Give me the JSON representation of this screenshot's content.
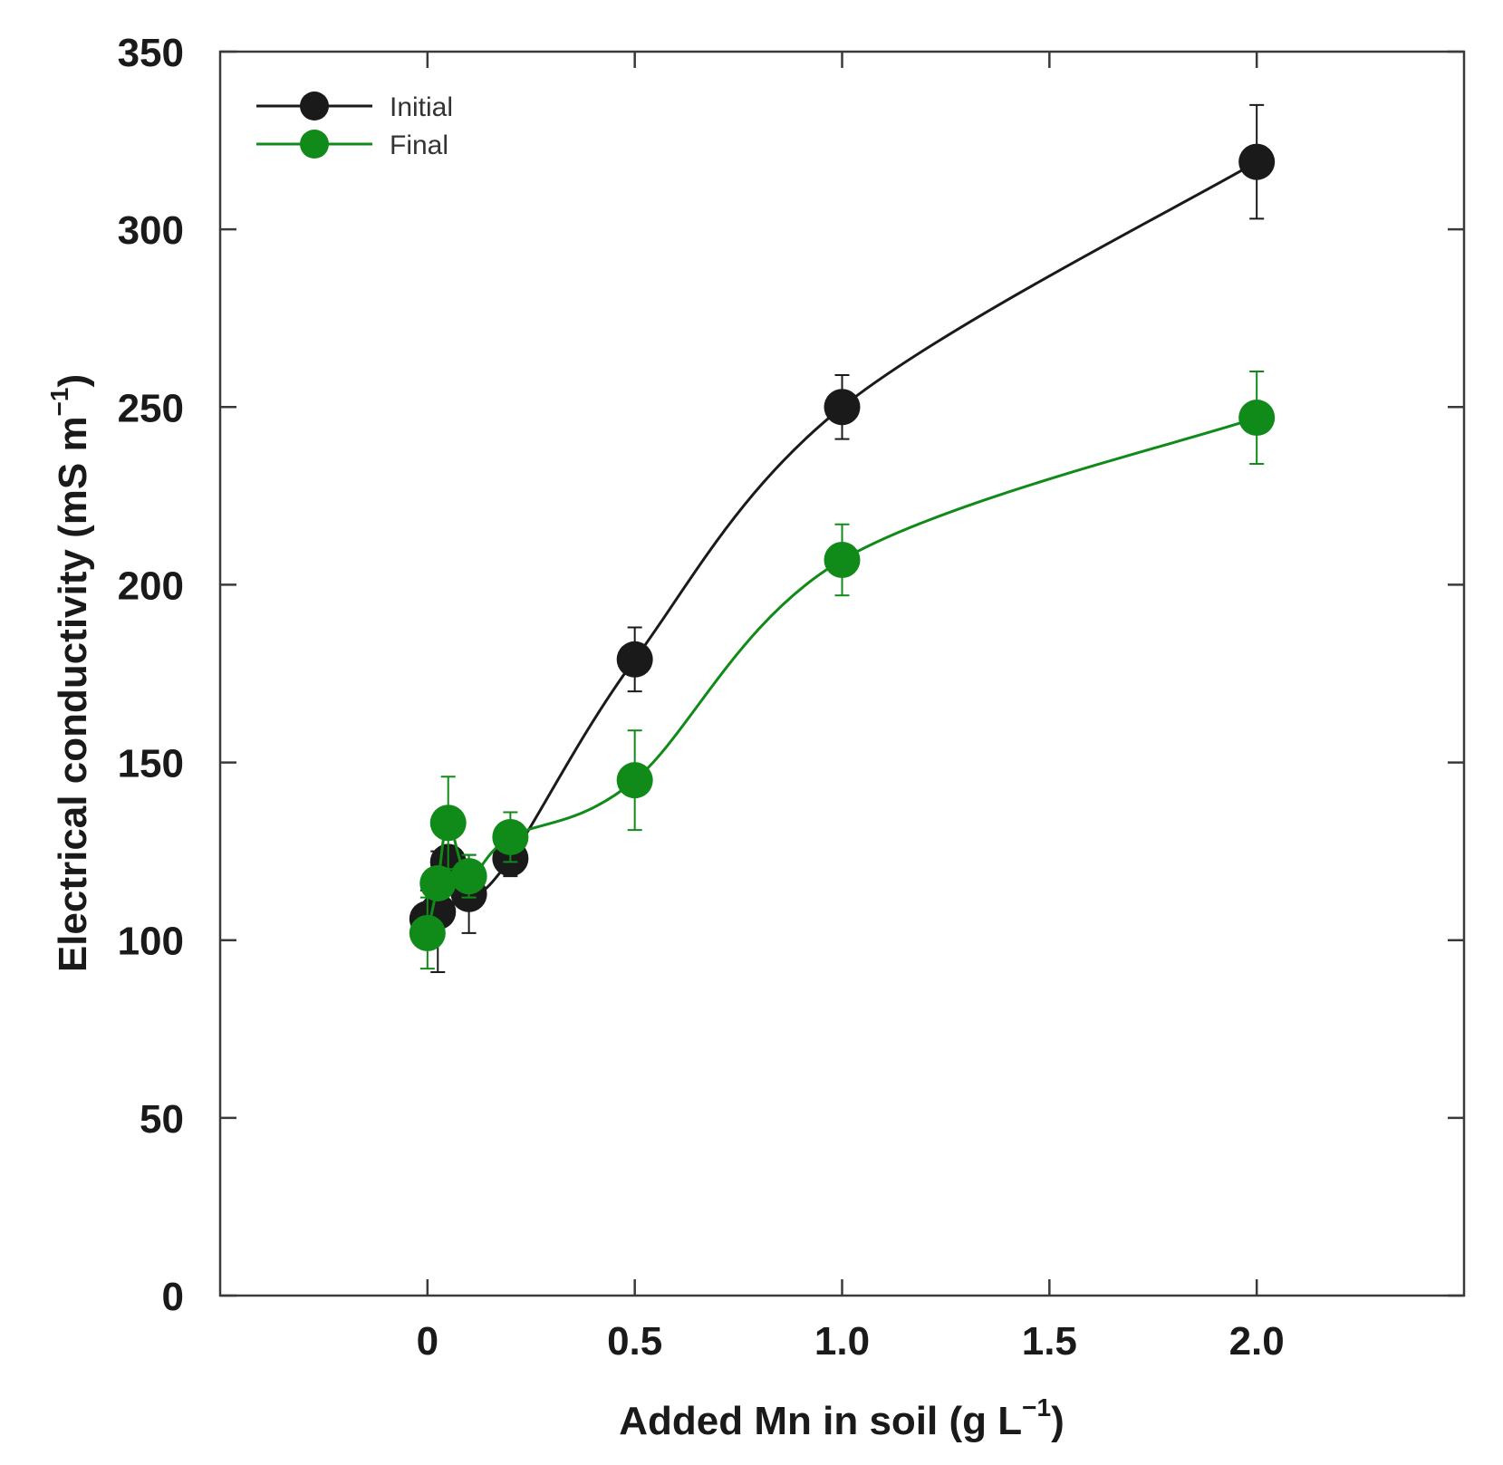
{
  "chart_data": {
    "type": "line",
    "title": "",
    "xlabel": "Added Mn in soil (g L",
    "xlabel_sup": "−1",
    "xlabel_close": ")",
    "ylabel": "Electrical conductivity (mS m",
    "ylabel_sup": "−1",
    "ylabel_close": ")",
    "xlim": [
      -0.5,
      2.5
    ],
    "ylim": [
      0,
      350
    ],
    "xticks": [
      0,
      0.5,
      1.0,
      1.5,
      2.0
    ],
    "xtick_labels": [
      "0",
      "0.5",
      "1.0",
      "1.5",
      "2.0"
    ],
    "yticks": [
      0,
      50,
      100,
      150,
      200,
      250,
      300,
      350
    ],
    "ytick_labels": [
      "0",
      "50",
      "100",
      "150",
      "200",
      "250",
      "300",
      "350"
    ],
    "legend_position": "top-left",
    "series": [
      {
        "name": "Initial",
        "color": "#1a1a1a",
        "x": [
          0,
          0.025,
          0.05,
          0.1,
          0.2,
          0.5,
          1.0,
          2.0
        ],
        "y": [
          106,
          108,
          122,
          113,
          123,
          179,
          250,
          319
        ],
        "err": [
          8,
          17,
          3,
          11,
          5,
          9,
          9,
          16
        ]
      },
      {
        "name": "Final",
        "color": "#108a18",
        "x": [
          0,
          0.025,
          0.05,
          0.1,
          0.2,
          0.5,
          1.0,
          2.0
        ],
        "y": [
          102,
          116,
          133,
          118,
          129,
          145,
          207,
          247
        ],
        "err": [
          10,
          4,
          13,
          6,
          7,
          14,
          10,
          13
        ]
      }
    ]
  }
}
